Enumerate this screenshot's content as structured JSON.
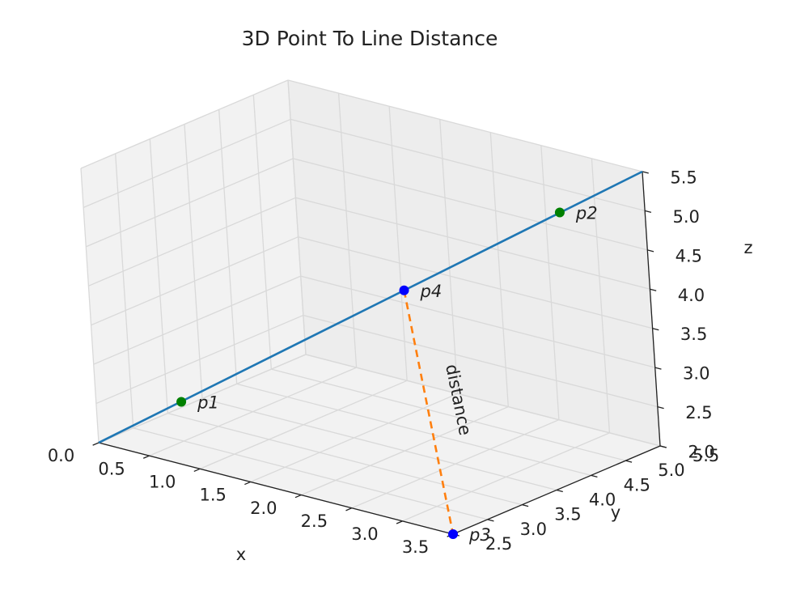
{
  "chart_data": {
    "type": "scatter",
    "projection": "3d",
    "title": "3D Point To Line Distance",
    "xlabel": "x",
    "ylabel": "y",
    "zlabel": "z",
    "xlim": [
      0.0,
      3.5
    ],
    "ylim": [
      2.5,
      5.5
    ],
    "zlim": [
      2.0,
      5.5
    ],
    "xticks": [
      "0.0",
      "0.5",
      "1.0",
      "1.5",
      "2.0",
      "2.5",
      "3.0",
      "3.5"
    ],
    "yticks": [
      "2.5",
      "3.0",
      "3.5",
      "4.0",
      "4.5",
      "5.0",
      "5.5"
    ],
    "zticks": [
      "2.0",
      "2.5",
      "3.0",
      "3.5",
      "4.0",
      "4.5",
      "5.0",
      "5.5"
    ],
    "grid": true,
    "line": {
      "from": [
        0.0,
        2.5,
        2.0
      ],
      "to": [
        3.5,
        5.5,
        5.5
      ],
      "color": "#1f77b4"
    },
    "points": [
      {
        "label": "p1",
        "x": 0.5,
        "y": 3.0,
        "z": 2.5,
        "color": "#008000"
      },
      {
        "label": "p2",
        "x": 3.0,
        "y": 5.0,
        "z": 5.0,
        "color": "#008000"
      },
      {
        "label": "p3",
        "x": 3.5,
        "y": 2.5,
        "z": 2.0,
        "color": "#0000ff"
      },
      {
        "label": "p4",
        "x": 1.97,
        "y": 4.18,
        "z": 3.97,
        "color": "#0000ff"
      }
    ],
    "distance_segment": {
      "from": "p4",
      "to": "p3",
      "label": "distance",
      "color": "#ff7f0e",
      "style": "dashed"
    }
  }
}
